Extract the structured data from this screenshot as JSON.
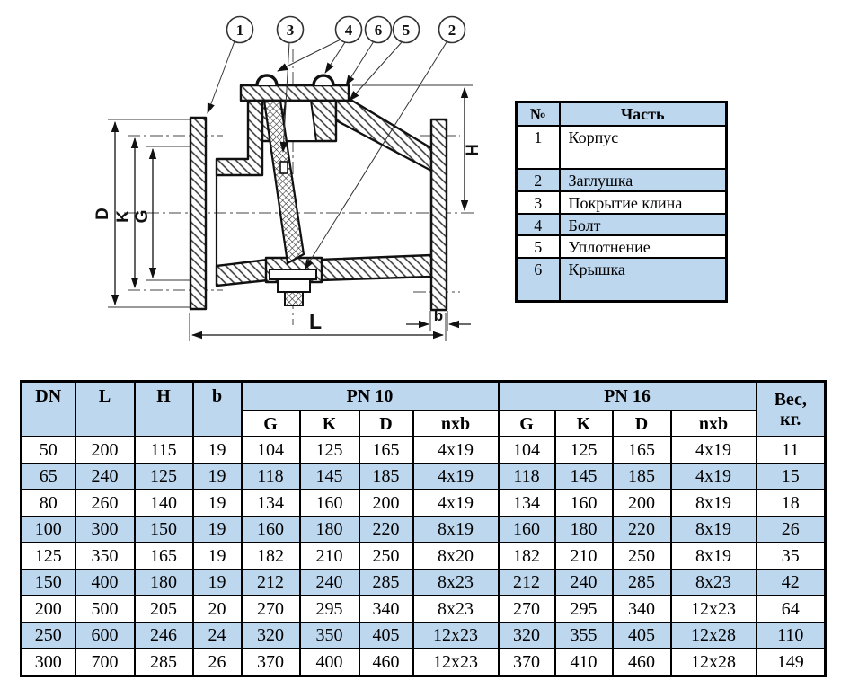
{
  "diagram": {
    "callouts": [
      "1",
      "3",
      "4",
      "6",
      "5",
      "2"
    ],
    "dim_labels": {
      "D": "D",
      "K": "K",
      "G": "G",
      "H": "H",
      "L": "L",
      "b": "b"
    }
  },
  "parts_table": {
    "headers": {
      "num": "№",
      "part": "Часть"
    },
    "rows": [
      {
        "num": "1",
        "name": "Корпус"
      },
      {
        "num": "2",
        "name": "Заглушка"
      },
      {
        "num": "3",
        "name": "Покрытие клина"
      },
      {
        "num": "4",
        "name": "Болт"
      },
      {
        "num": "5",
        "name": "Уплотнение"
      },
      {
        "num": "6",
        "name": "Крышка"
      }
    ]
  },
  "dimensions_table": {
    "headers": {
      "dn": "DN",
      "l": "L",
      "h": "H",
      "b": "b",
      "pn10": "PN 10",
      "pn16": "PN 16",
      "weight_line1": "Вес,",
      "weight_line2": "кг.",
      "g": "G",
      "k": "K",
      "d": "D",
      "nxb": "nxb"
    },
    "rows": [
      [
        "50",
        "200",
        "115",
        "19",
        "104",
        "125",
        "165",
        "4x19",
        "104",
        "125",
        "165",
        "4x19",
        "11"
      ],
      [
        "65",
        "240",
        "125",
        "19",
        "118",
        "145",
        "185",
        "4x19",
        "118",
        "145",
        "185",
        "4x19",
        "15"
      ],
      [
        "80",
        "260",
        "140",
        "19",
        "134",
        "160",
        "200",
        "4x19",
        "134",
        "160",
        "200",
        "8x19",
        "18"
      ],
      [
        "100",
        "300",
        "150",
        "19",
        "160",
        "180",
        "220",
        "8x19",
        "160",
        "180",
        "220",
        "8x19",
        "26"
      ],
      [
        "125",
        "350",
        "165",
        "19",
        "182",
        "210",
        "250",
        "8x20",
        "182",
        "210",
        "250",
        "8x19",
        "35"
      ],
      [
        "150",
        "400",
        "180",
        "19",
        "212",
        "240",
        "285",
        "8x23",
        "212",
        "240",
        "285",
        "8x23",
        "42"
      ],
      [
        "200",
        "500",
        "205",
        "20",
        "270",
        "295",
        "340",
        "8x23",
        "270",
        "295",
        "340",
        "12x23",
        "64"
      ],
      [
        "250",
        "600",
        "246",
        "24",
        "320",
        "350",
        "405",
        "12x23",
        "320",
        "355",
        "405",
        "12x28",
        "110"
      ],
      [
        "300",
        "700",
        "285",
        "26",
        "370",
        "400",
        "460",
        "12x23",
        "370",
        "410",
        "460",
        "12x28",
        "149"
      ]
    ]
  },
  "colors": {
    "table_blue": "#BDD7EE",
    "line": "#111111"
  }
}
